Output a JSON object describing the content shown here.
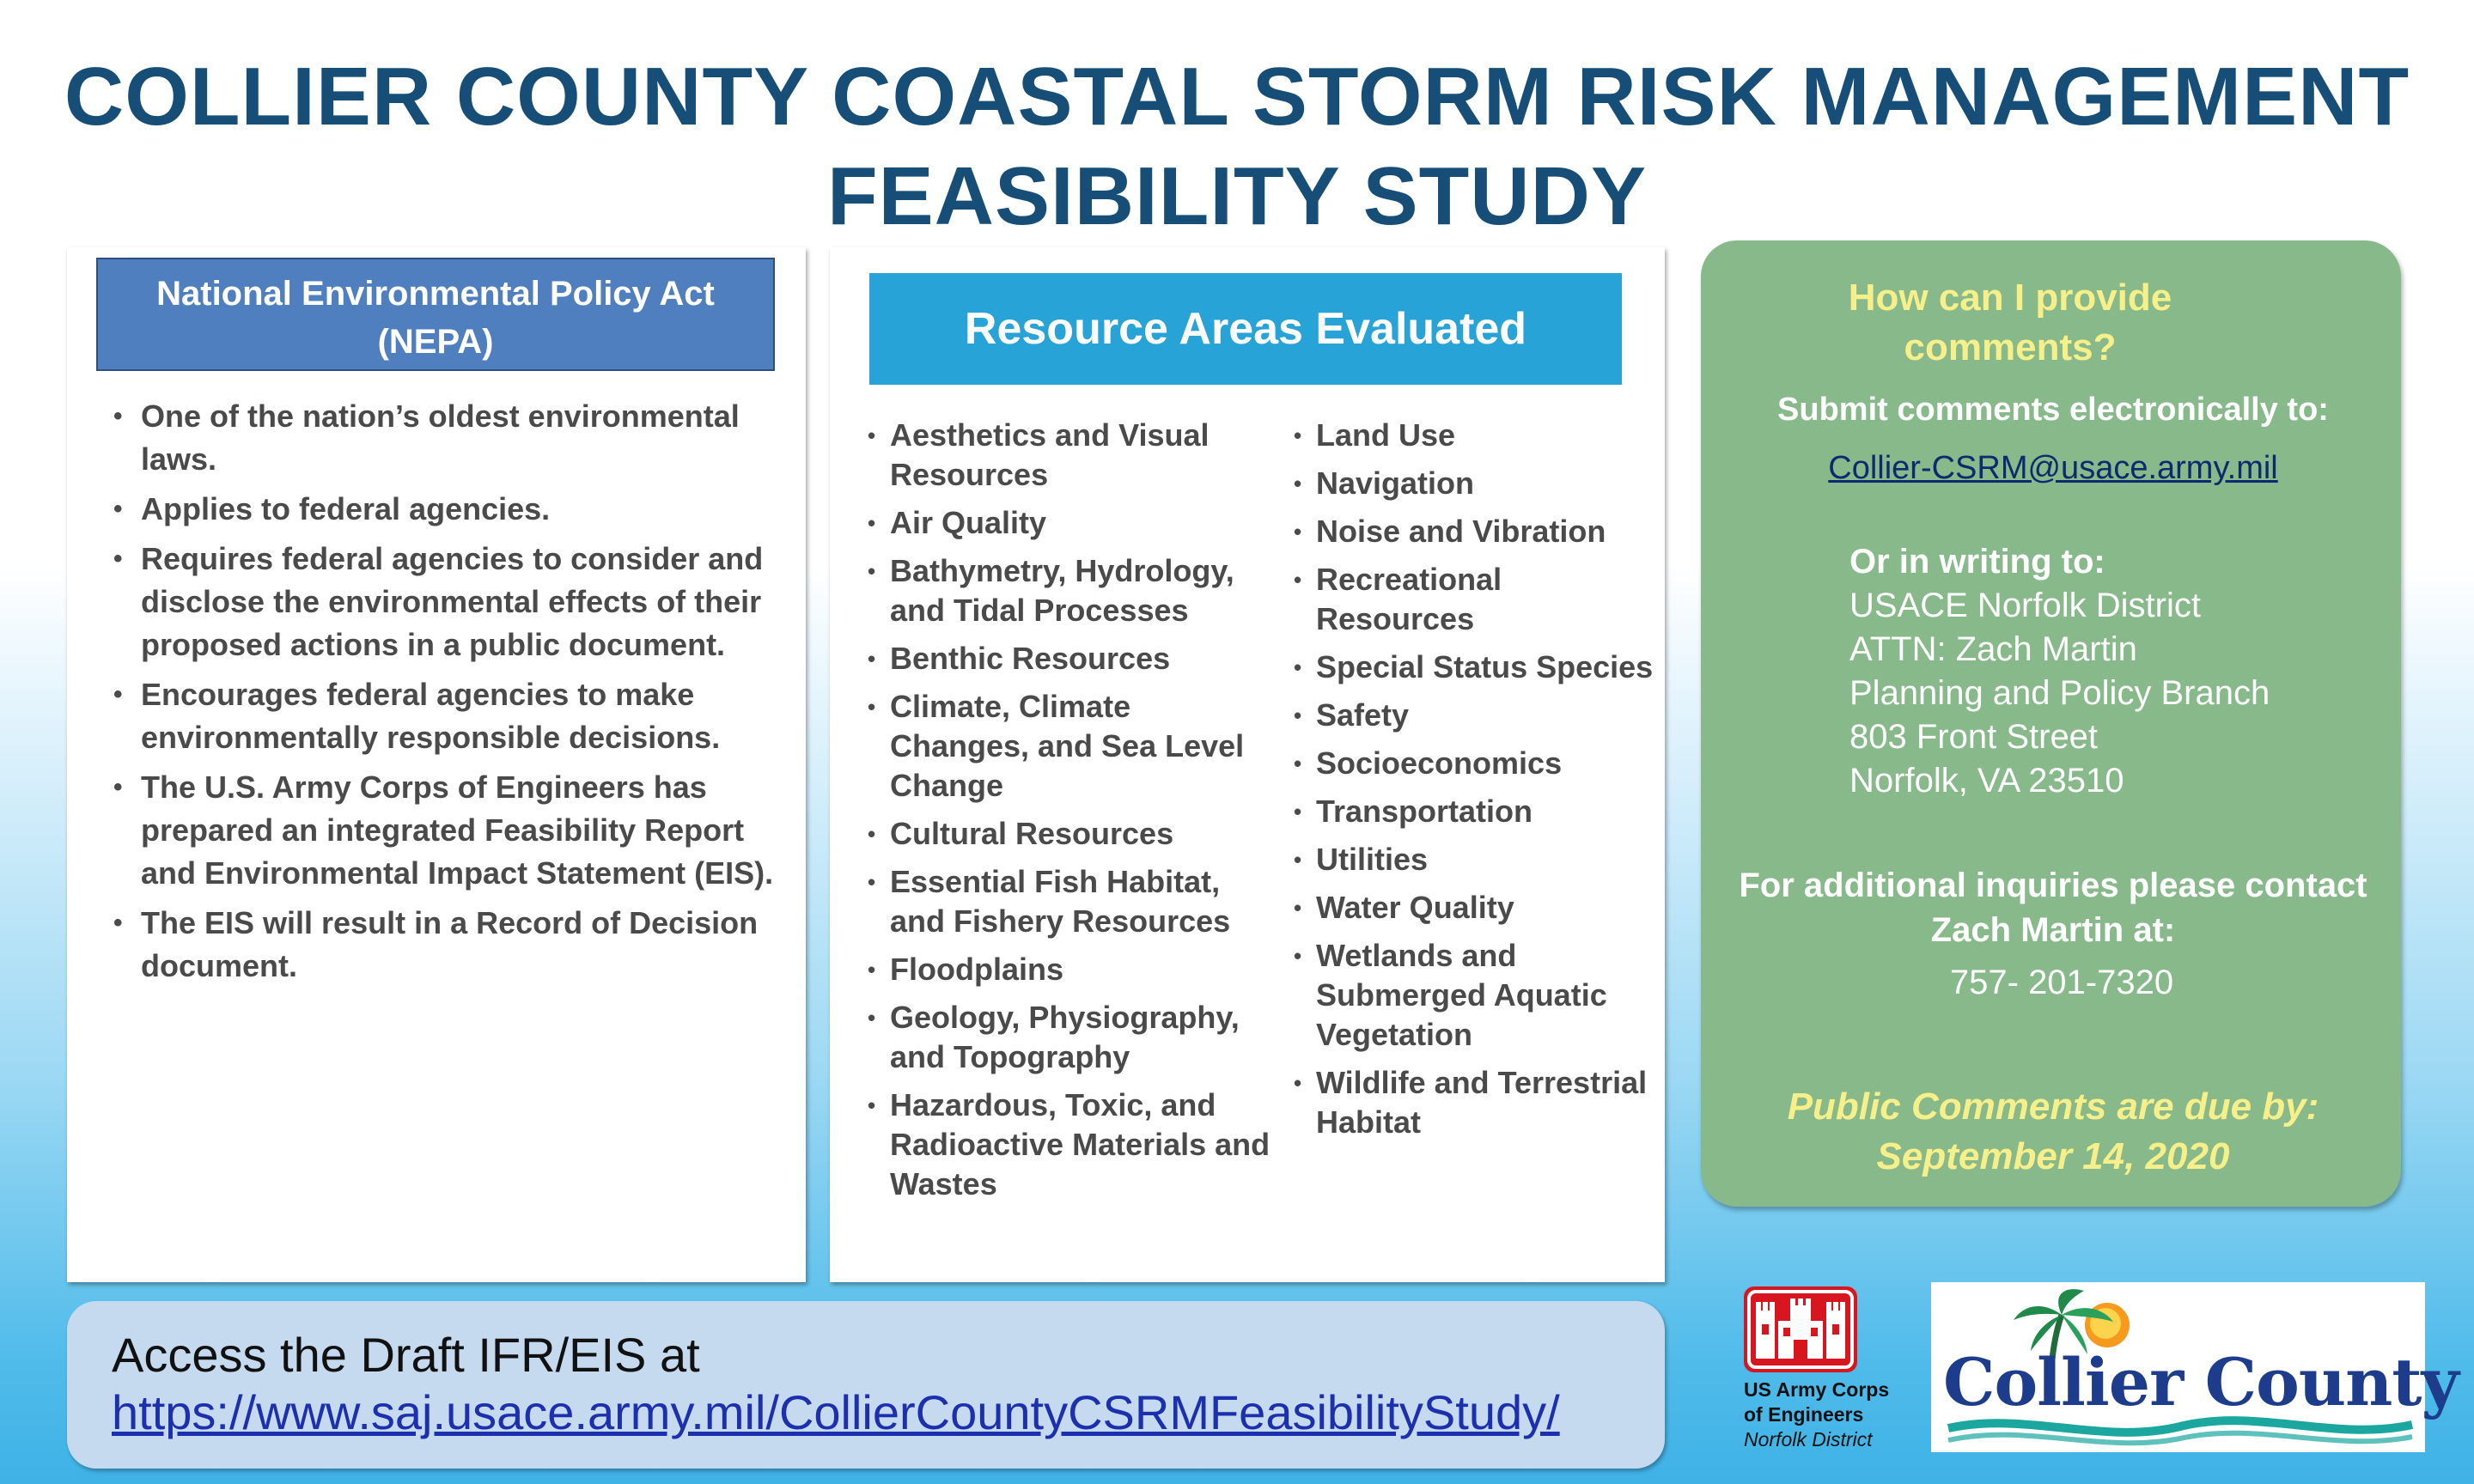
{
  "title": {
    "line1": "COLLIER COUNTY COASTAL STORM RISK MANAGEMENT",
    "line2": "FEASIBILITY STUDY"
  },
  "nepa": {
    "header_line1": "National Environmental Policy Act",
    "header_line2": "(NEPA)",
    "bullets": [
      "One of the nation’s oldest environmental laws.",
      "Applies to federal agencies.",
      "Requires federal agencies to consider and  disclose the environmental effects of their proposed actions in a public document.",
      "Encourages federal agencies to make environmentally responsible decisions.",
      "The U.S. Army Corps of Engineers has prepared an integrated Feasibility Report and Environmental Impact Statement (EIS).",
      "The EIS will result in a Record of Decision document."
    ]
  },
  "resources": {
    "header": "Resource Areas Evaluated",
    "col_a": [
      "Aesthetics and Visual Resources",
      "Air Quality",
      "Bathymetry, Hydrology, and Tidal Processes",
      "Benthic Resources",
      "Climate, Climate Changes, and Sea Level Change",
      "Cultural Resources",
      "Essential Fish Habitat, and Fishery Resources",
      "Floodplains",
      "Geology, Physiography, and Topography",
      "Hazardous, Toxic, and Radioactive Materials and Wastes"
    ],
    "col_b": [
      "Land Use",
      "Navigation",
      "Noise and Vibration",
      "Recreational Resources",
      "Special Status Species",
      "Safety",
      "Socioeconomics",
      "Transportation",
      "Utilities",
      "Water Quality",
      "Wetlands and Submerged Aquatic Vegetation",
      "Wildlife and Terrestrial  Habitat"
    ]
  },
  "comments": {
    "question": "How can I provide comments?",
    "submit_label": "Submit comments electronically to:",
    "email": "Collier-CSRM@usace.army.mil",
    "writing_label": "Or in writing to:",
    "address": {
      "line1": "USACE Norfolk District",
      "line2": "ATTN: Zach Martin",
      "line3": "Planning and Policy Branch",
      "line4": "803 Front Street",
      "line5": "Norfolk, VA 23510"
    },
    "inquiry": "For additional inquiries please contact Zach Martin at:",
    "phone": "757- 201-7320",
    "due_line1": "Public Comments are due by:",
    "due_line2": "September 14,  2020"
  },
  "access": {
    "line1": "Access the Draft IFR/EIS at",
    "url": "https://www.saj.usace.army.mil/CollierCountyCSRMFeasibilityStudy/"
  },
  "usace": {
    "line1": "US Army Corps",
    "line2": "of Engineers",
    "line3": "Norfolk District"
  },
  "collier": {
    "name": "Collier County"
  },
  "colors": {
    "title": "#174e78",
    "nepa_header": "#4f7fbf",
    "resource_header": "#27a3d8",
    "comment_panel": "#87b98a",
    "highlight_yellow": "#f7f08a",
    "usace_red": "#d7161f"
  }
}
